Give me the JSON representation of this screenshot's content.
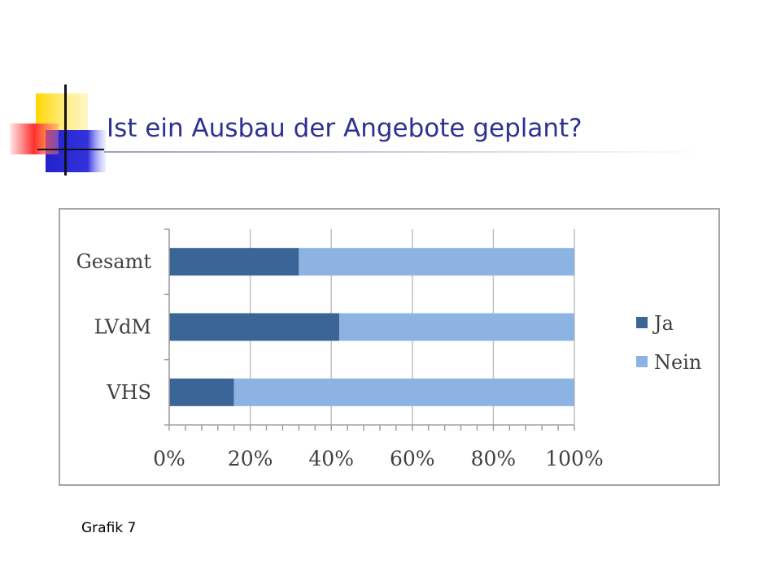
{
  "slide": {
    "title": "Ist ein Ausbau der Angebote geplant?",
    "caption": "Grafik 7"
  },
  "colors": {
    "title": "#2e3192",
    "ja": "#3b6596",
    "nein": "#8db3e2",
    "deco_yellow": "#ffd700",
    "deco_red": "#ff3030",
    "deco_blue": "#2222cc"
  },
  "chart_data": {
    "type": "bar",
    "orientation": "horizontal",
    "stacked": "percent",
    "categories": [
      "Gesamt",
      "LVdM",
      "VHS"
    ],
    "series": [
      {
        "name": "Ja",
        "values": [
          32,
          42,
          16
        ]
      },
      {
        "name": "Nein",
        "values": [
          68,
          58,
          84
        ]
      }
    ],
    "xticks": [
      "0%",
      "20%",
      "40%",
      "60%",
      "80%",
      "100%"
    ],
    "xlim": [
      0,
      100
    ],
    "grid": true,
    "legend": "right"
  }
}
